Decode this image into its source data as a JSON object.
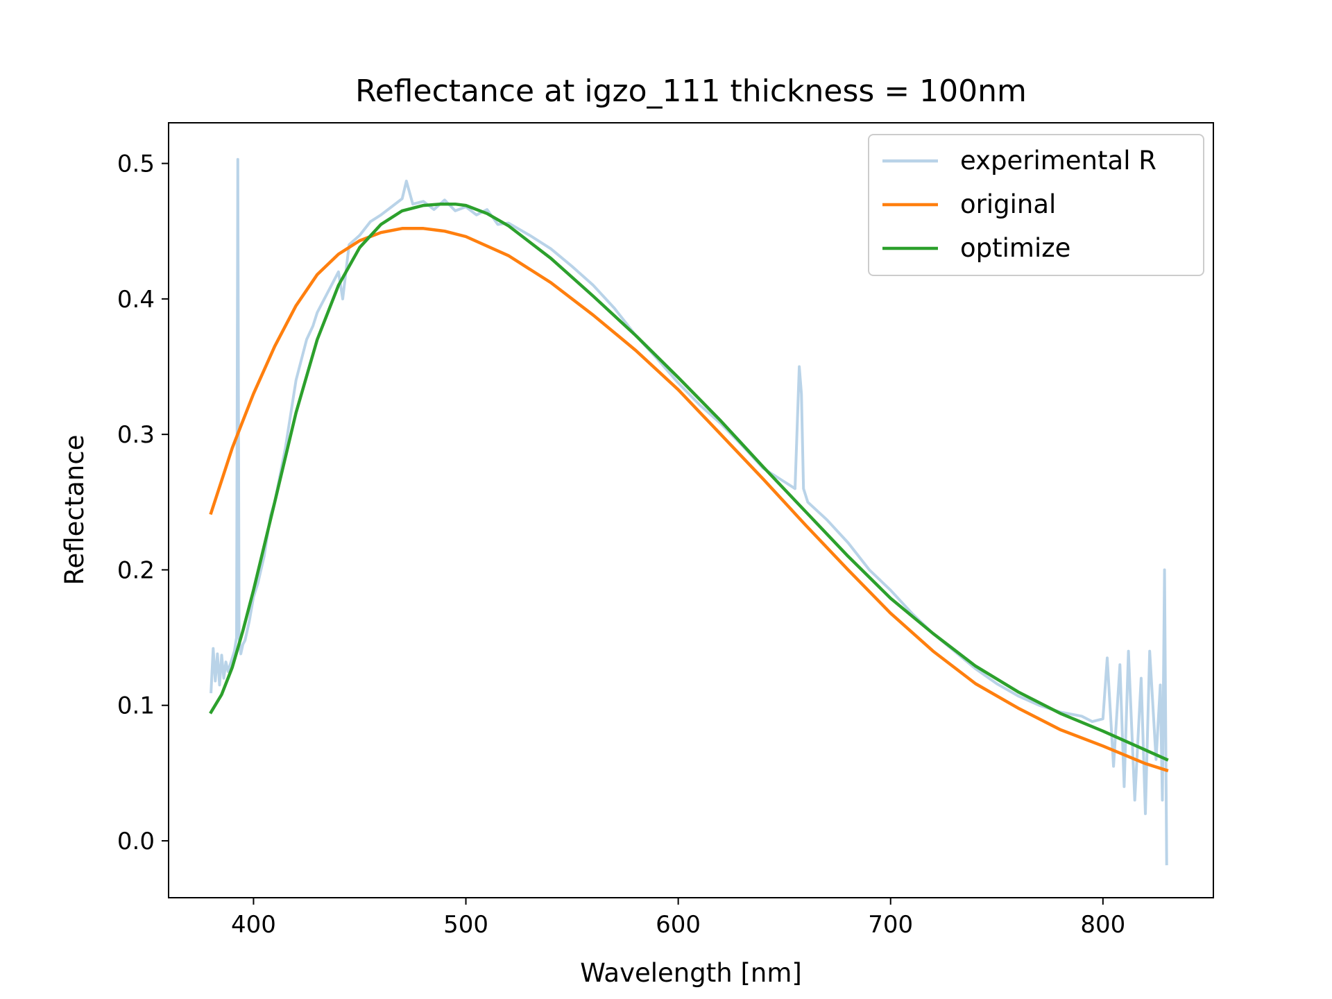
{
  "chart_data": {
    "type": "line",
    "title": "Reflectance at igzo_111 thickness = 100nm",
    "xlabel": "Wavelength [nm]",
    "ylabel": "Reflectance",
    "xlim": [
      360,
      852
    ],
    "ylim": [
      -0.042,
      0.53
    ],
    "xticks": [
      400,
      500,
      600,
      700,
      800
    ],
    "yticks": [
      0.0,
      0.1,
      0.2,
      0.3,
      0.4,
      0.5
    ],
    "xtick_labels": [
      "400",
      "500",
      "600",
      "700",
      "800"
    ],
    "ytick_labels": [
      "0.0",
      "0.1",
      "0.2",
      "0.3",
      "0.4",
      "0.5"
    ],
    "grid": false,
    "legend_position": "top-right",
    "series": [
      {
        "name": "experimental R",
        "color": "#b9d3e8",
        "x": [
          380,
          381,
          382,
          383,
          384,
          385,
          386,
          387,
          388,
          389,
          390,
          391,
          392,
          392.6,
          393.2,
          394,
          395,
          396,
          398,
          400,
          402,
          405,
          408,
          410,
          415,
          420,
          425,
          428,
          430,
          435,
          440,
          442,
          445,
          450,
          455,
          460,
          465,
          470,
          472,
          475,
          480,
          485,
          490,
          495,
          500,
          505,
          510,
          515,
          520,
          530,
          540,
          550,
          560,
          570,
          580,
          590,
          600,
          610,
          620,
          630,
          640,
          650,
          655,
          657,
          658,
          659,
          661,
          670,
          680,
          690,
          700,
          710,
          720,
          730,
          740,
          750,
          760,
          770,
          780,
          790,
          795,
          800,
          802,
          805,
          808,
          810,
          812,
          815,
          818,
          820,
          822,
          825,
          827,
          828,
          829,
          830
        ],
        "y": [
          0.11,
          0.142,
          0.118,
          0.138,
          0.115,
          0.137,
          0.12,
          0.132,
          0.125,
          0.13,
          0.135,
          0.14,
          0.15,
          0.503,
          0.15,
          0.138,
          0.145,
          0.148,
          0.162,
          0.18,
          0.19,
          0.21,
          0.24,
          0.25,
          0.29,
          0.34,
          0.37,
          0.38,
          0.39,
          0.405,
          0.42,
          0.4,
          0.44,
          0.447,
          0.457,
          0.462,
          0.468,
          0.474,
          0.487,
          0.47,
          0.472,
          0.466,
          0.473,
          0.465,
          0.468,
          0.462,
          0.466,
          0.455,
          0.456,
          0.447,
          0.437,
          0.424,
          0.41,
          0.393,
          0.373,
          0.356,
          0.338,
          0.322,
          0.308,
          0.292,
          0.275,
          0.265,
          0.26,
          0.35,
          0.33,
          0.26,
          0.25,
          0.237,
          0.22,
          0.2,
          0.185,
          0.168,
          0.153,
          0.14,
          0.127,
          0.116,
          0.107,
          0.1,
          0.095,
          0.092,
          0.088,
          0.09,
          0.135,
          0.055,
          0.13,
          0.04,
          0.14,
          0.03,
          0.12,
          0.02,
          0.14,
          0.06,
          0.115,
          0.03,
          0.2,
          -0.017
        ]
      },
      {
        "name": "original",
        "color": "#ff7f0e",
        "x": [
          380,
          390,
          400,
          410,
          420,
          430,
          440,
          450,
          460,
          470,
          475,
          480,
          490,
          500,
          520,
          540,
          560,
          580,
          600,
          620,
          640,
          660,
          680,
          700,
          720,
          740,
          760,
          780,
          800,
          820,
          830
        ],
        "y": [
          0.242,
          0.29,
          0.33,
          0.365,
          0.395,
          0.418,
          0.433,
          0.443,
          0.449,
          0.452,
          0.452,
          0.452,
          0.45,
          0.446,
          0.432,
          0.412,
          0.388,
          0.362,
          0.333,
          0.3,
          0.267,
          0.233,
          0.2,
          0.168,
          0.14,
          0.116,
          0.098,
          0.082,
          0.07,
          0.057,
          0.052
        ]
      },
      {
        "name": "optimize",
        "color": "#2ca02c",
        "x": [
          380,
          385,
          390,
          395,
          400,
          410,
          420,
          430,
          440,
          450,
          460,
          470,
          480,
          488,
          495,
          500,
          510,
          520,
          540,
          560,
          580,
          600,
          620,
          640,
          660,
          680,
          700,
          720,
          740,
          760,
          780,
          800,
          820,
          830
        ],
        "y": [
          0.095,
          0.108,
          0.128,
          0.155,
          0.185,
          0.25,
          0.316,
          0.37,
          0.41,
          0.438,
          0.455,
          0.465,
          0.469,
          0.47,
          0.47,
          0.469,
          0.463,
          0.454,
          0.43,
          0.402,
          0.373,
          0.342,
          0.31,
          0.276,
          0.243,
          0.21,
          0.179,
          0.153,
          0.129,
          0.11,
          0.094,
          0.081,
          0.067,
          0.06
        ]
      }
    ]
  }
}
